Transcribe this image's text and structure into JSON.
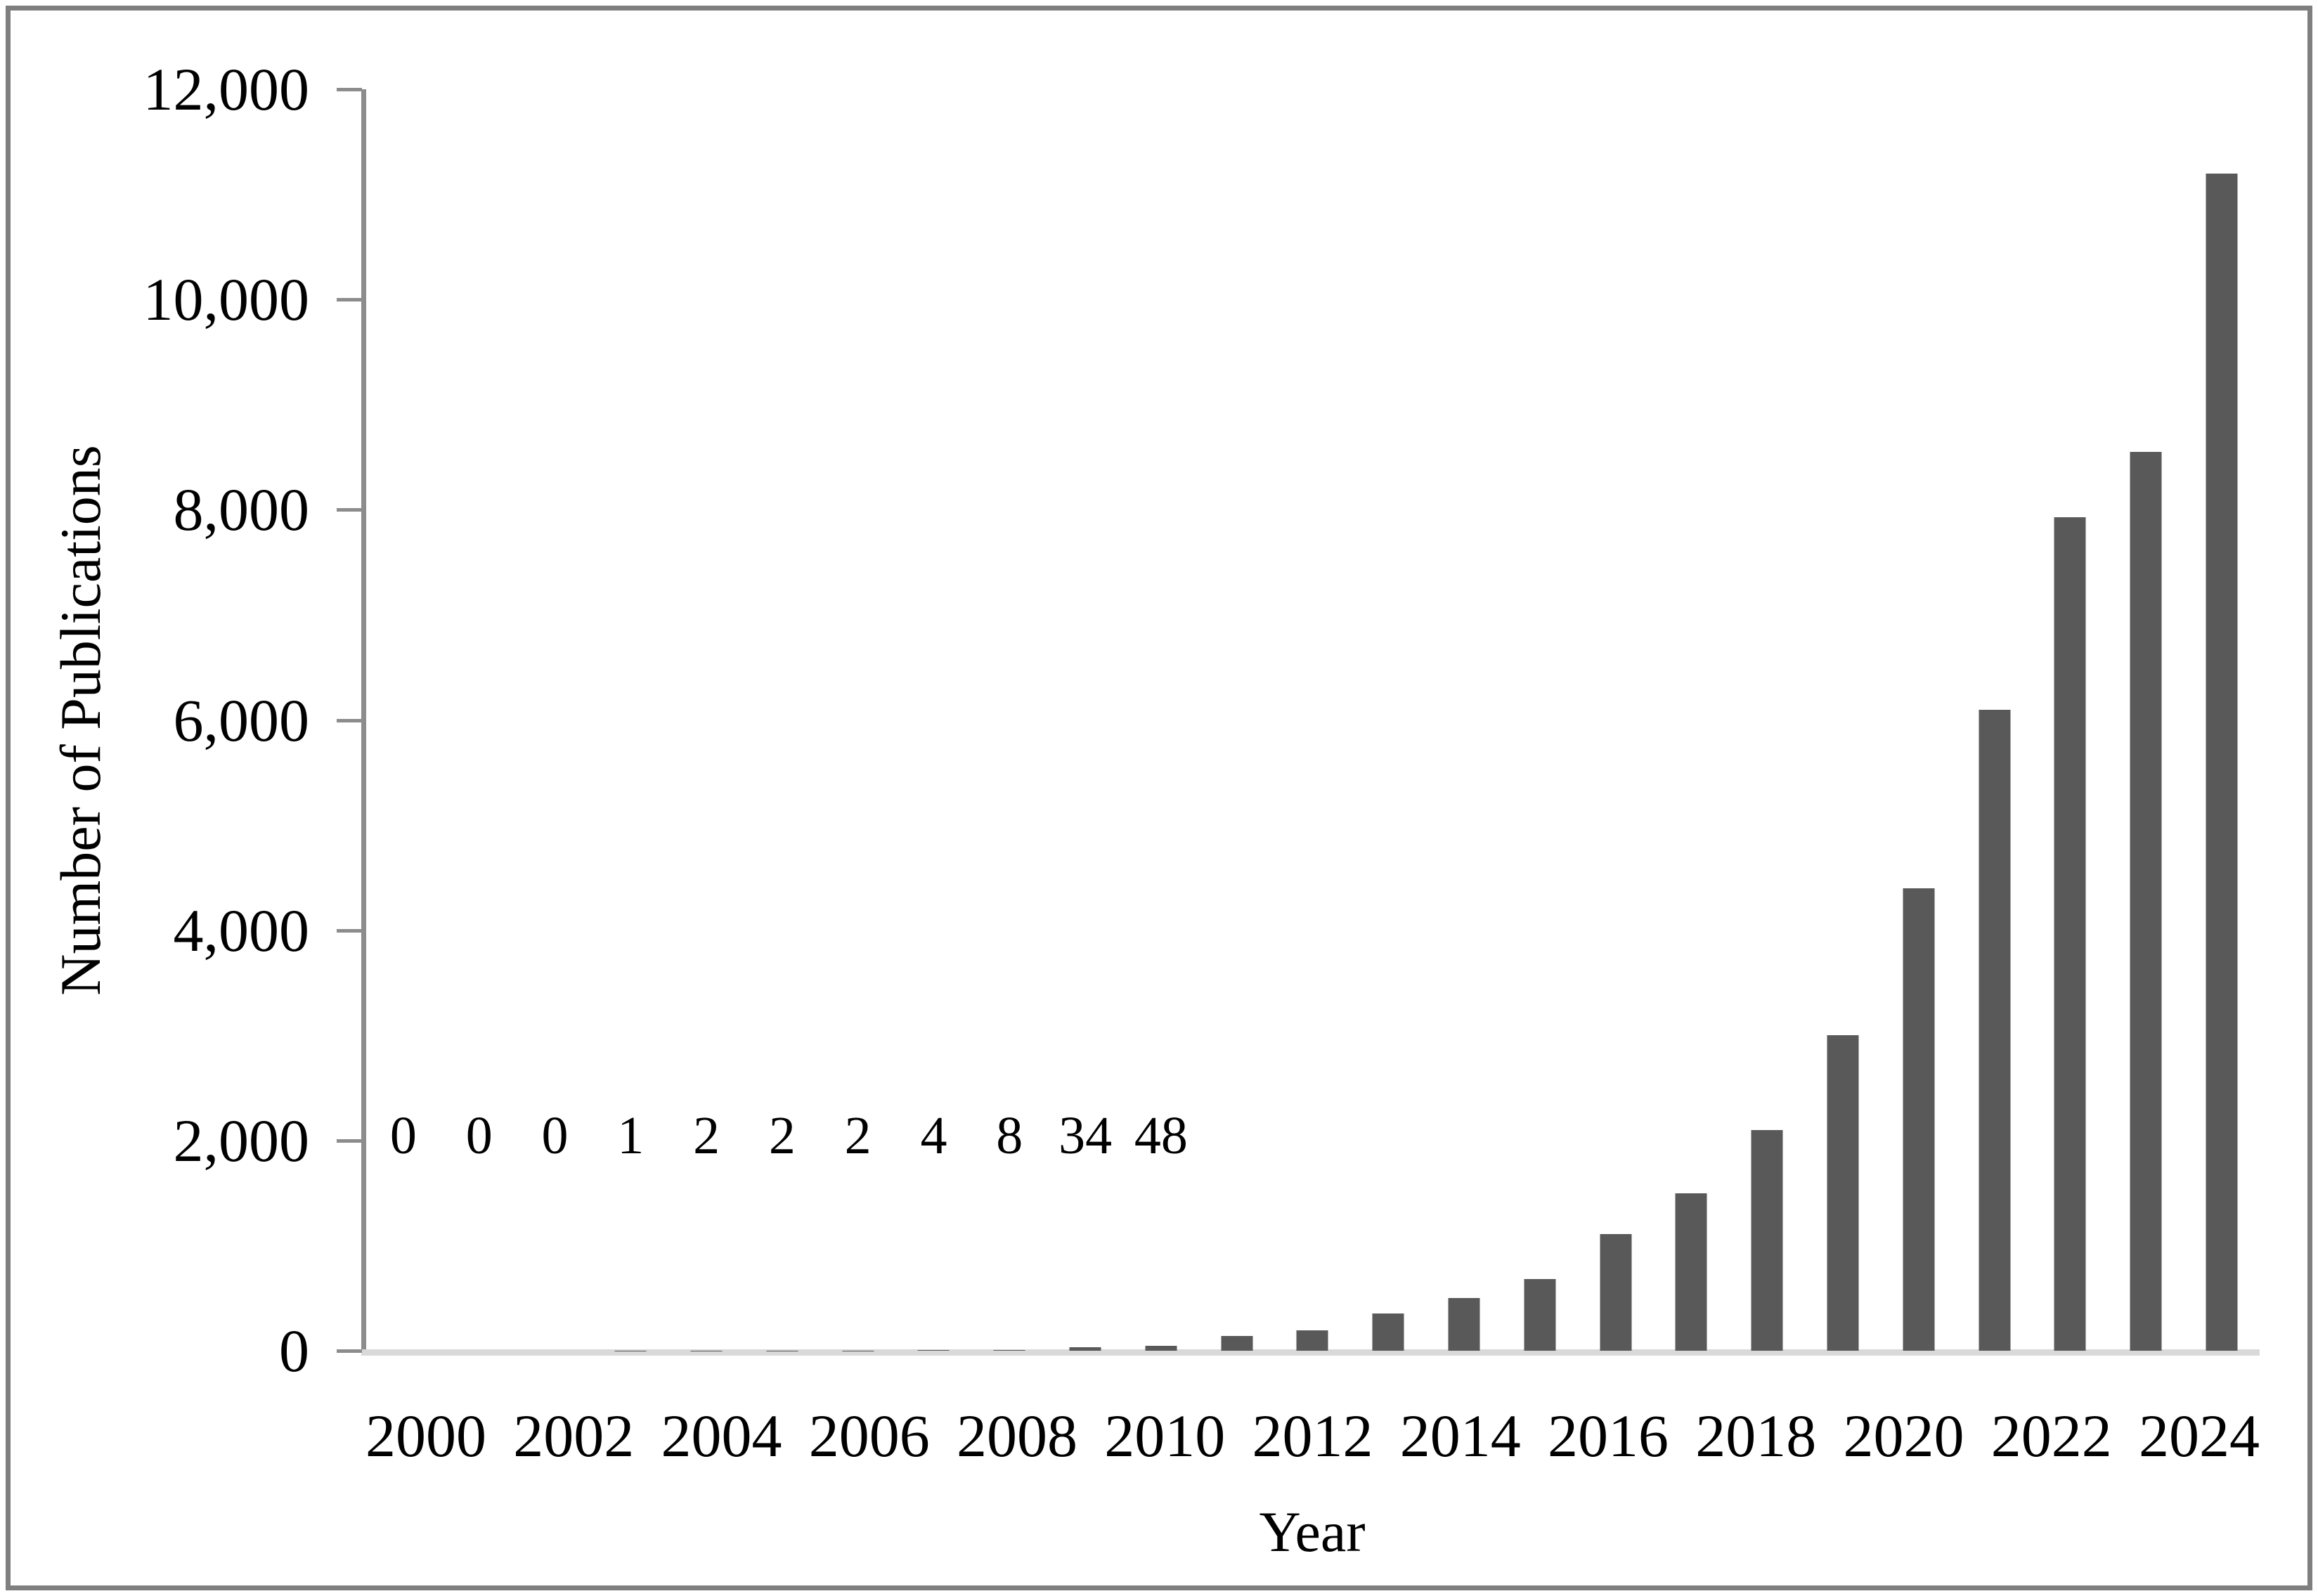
{
  "figure": {
    "background": "#ffffff",
    "border_color": "#7f7f7f"
  },
  "chart_data": {
    "type": "bar",
    "title": "",
    "xlabel": "Year",
    "ylabel": "Number of Publications",
    "categories": [
      2000,
      2001,
      2002,
      2003,
      2004,
      2005,
      2006,
      2007,
      2008,
      2009,
      2010,
      2011,
      2012,
      2013,
      2014,
      2015,
      2016,
      2017,
      2018,
      2019,
      2020,
      2021,
      2022,
      2023,
      2024
    ],
    "values": [
      0,
      0,
      0,
      1,
      2,
      2,
      2,
      4,
      8,
      34,
      48,
      140,
      195,
      355,
      500,
      680,
      1110,
      1500,
      2100,
      3000,
      4400,
      6100,
      7930,
      8550,
      11200
    ],
    "bar_labels": [
      "0",
      "0",
      "0",
      "1",
      "2",
      "2",
      "2",
      "4",
      "8",
      "34",
      "48"
    ],
    "ylim": [
      0,
      12000
    ],
    "y_ticks": [
      0,
      2000,
      4000,
      6000,
      8000,
      10000,
      12000
    ],
    "y_tick_labels": [
      "0",
      "2,000",
      "4,000",
      "6,000",
      "8,000",
      "10,000",
      "12,000"
    ],
    "x_tick_labels": [
      "2000",
      "2002",
      "2004",
      "2006",
      "2008",
      "2010",
      "2012",
      "2014",
      "2016",
      "2018",
      "2020",
      "2022",
      "2024"
    ],
    "x_tick_step": 2,
    "grid": false,
    "legend": null,
    "bar_color": "#595959",
    "axis_color": "#8c8c8c",
    "baseline_color": "#d9d9d9"
  }
}
